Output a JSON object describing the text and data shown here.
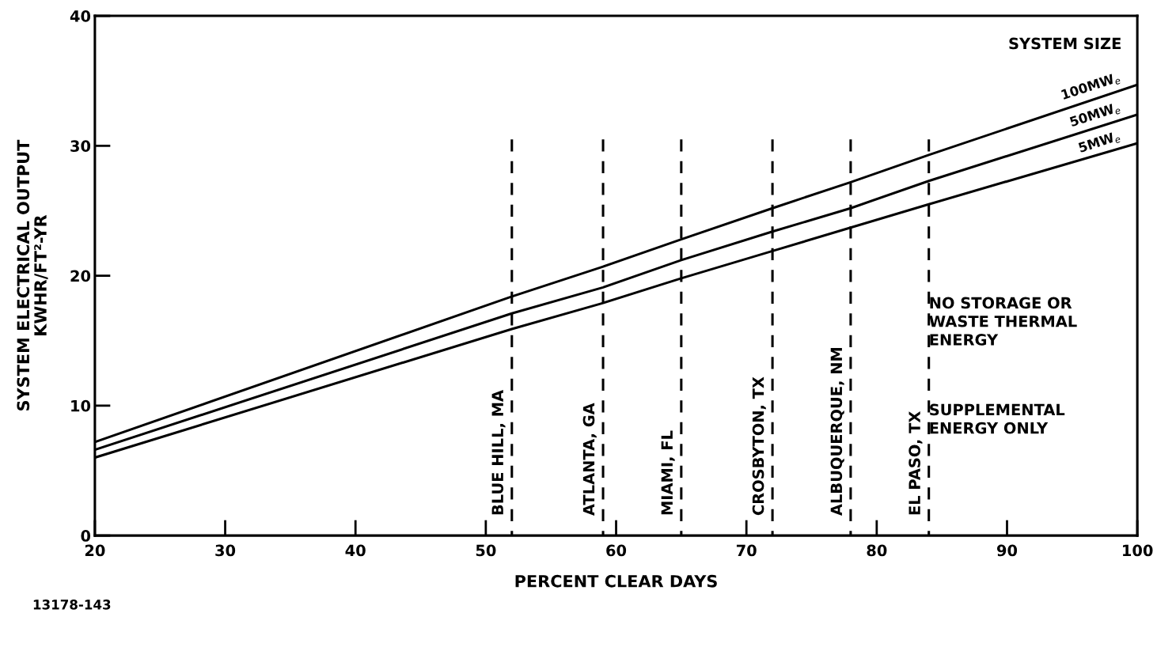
{
  "chart_data": {
    "type": "line",
    "xlabel": "PERCENT CLEAR DAYS",
    "ylabel": "SYSTEM ELECTRICAL OUTPUT\nKWHR/FT²-YR",
    "xlim": [
      20,
      100
    ],
    "xticks": [
      20,
      30,
      40,
      50,
      60,
      70,
      80,
      90,
      100
    ],
    "ylim": [
      0,
      40
    ],
    "yticks": [
      0,
      10,
      20,
      30,
      40
    ],
    "grid": false,
    "legend": false,
    "marker": "none",
    "x": [
      20,
      52,
      59,
      65,
      72,
      78,
      84,
      100
    ],
    "series": [
      {
        "name": "100MW$_{e}$",
        "color": "#000000",
        "line_style": "solid",
        "values": [
          7.2,
          18.4,
          20.7,
          22.8,
          25.2,
          27.2,
          29.3,
          34.7
        ]
      },
      {
        "name": "50MW$_{e}$",
        "color": "#000000",
        "line_style": "solid",
        "values": [
          6.6,
          17.1,
          19.1,
          21.2,
          23.4,
          25.2,
          27.3,
          32.4
        ]
      },
      {
        "name": "5MW$_{e}$",
        "color": "#000000",
        "line_style": "solid",
        "values": [
          6.0,
          15.9,
          17.9,
          19.8,
          21.9,
          23.7,
          25.5,
          30.2
        ]
      },
      {
        "color": "#000000",
        "line_style": "dashed",
        "x": [
          52,
          52
        ],
        "values": [
          30.5,
          0
        ]
      },
      {
        "color": "#000000",
        "line_style": "dashed",
        "x": [
          59,
          59
        ],
        "values": [
          30.5,
          0
        ]
      },
      {
        "color": "#000000",
        "line_style": "dashed",
        "x": [
          65,
          65
        ],
        "values": [
          30.5,
          0
        ]
      },
      {
        "color": "#000000",
        "line_style": "dashed",
        "x": [
          72,
          72
        ],
        "values": [
          30.5,
          0
        ]
      },
      {
        "color": "#000000",
        "line_style": "dashed",
        "x": [
          78,
          78
        ],
        "values": [
          30.5,
          0
        ]
      },
      {
        "color": "#000000",
        "line_style": "dashed",
        "x": [
          84,
          84
        ],
        "values": [
          30.5,
          0
        ]
      }
    ],
    "annotations": [
      {
        "text": "BLUE HILL, MA",
        "x": 52,
        "y": 0
      },
      {
        "text": "ATLANTA, GA",
        "x": 59,
        "y": 0
      },
      {
        "text": "MIAMI, FL",
        "x": 65,
        "y": 0
      },
      {
        "text": "CROSBYTON, TX",
        "x": 72,
        "y": 0
      },
      {
        "text": "ALBUQUERQUE, NM",
        "x": 78,
        "y": 0
      },
      {
        "text": "EL PASO, TX",
        "x": 84,
        "y": 0
      },
      "SYSTEM SIZE",
      "NO STORAGE OR\nWASTE THERMAL\nENERGY",
      "SUPPLEMENTAL\nENERGY ONLY",
      "13178-143"
    ]
  }
}
